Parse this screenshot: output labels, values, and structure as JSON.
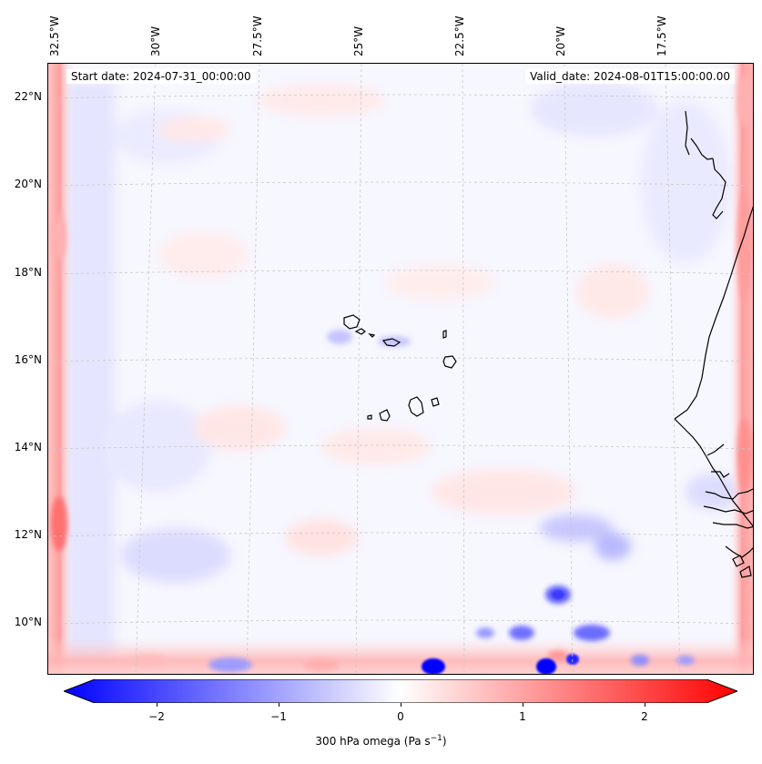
{
  "map": {
    "start_date": "Start date: 2024-07-31_00:00:00",
    "valid_date": "Valid_date: 2024-08-01T15:00:00.00",
    "lon_labels": [
      "32.5°W",
      "30°W",
      "27.5°W",
      "25°W",
      "22.5°W",
      "20°W",
      "17.5°W"
    ],
    "lat_labels": [
      "22°N",
      "20°N",
      "18°N",
      "16°N",
      "14°N",
      "12°N",
      "10°N"
    ]
  },
  "colorbar": {
    "label": "300 hPa omega (Pa s",
    "label_sup": "−1",
    "label_end": ")",
    "ticks": [
      "−2",
      "−1",
      "0",
      "1",
      "2"
    ],
    "tick_values": [
      -2,
      -1,
      0,
      1,
      2
    ],
    "range": [
      -2.75,
      2.75
    ],
    "colormap": "bwr",
    "colors": {
      "neg": "#0000ff",
      "zero": "#ffffff",
      "pos": "#ff0000"
    }
  }
}
